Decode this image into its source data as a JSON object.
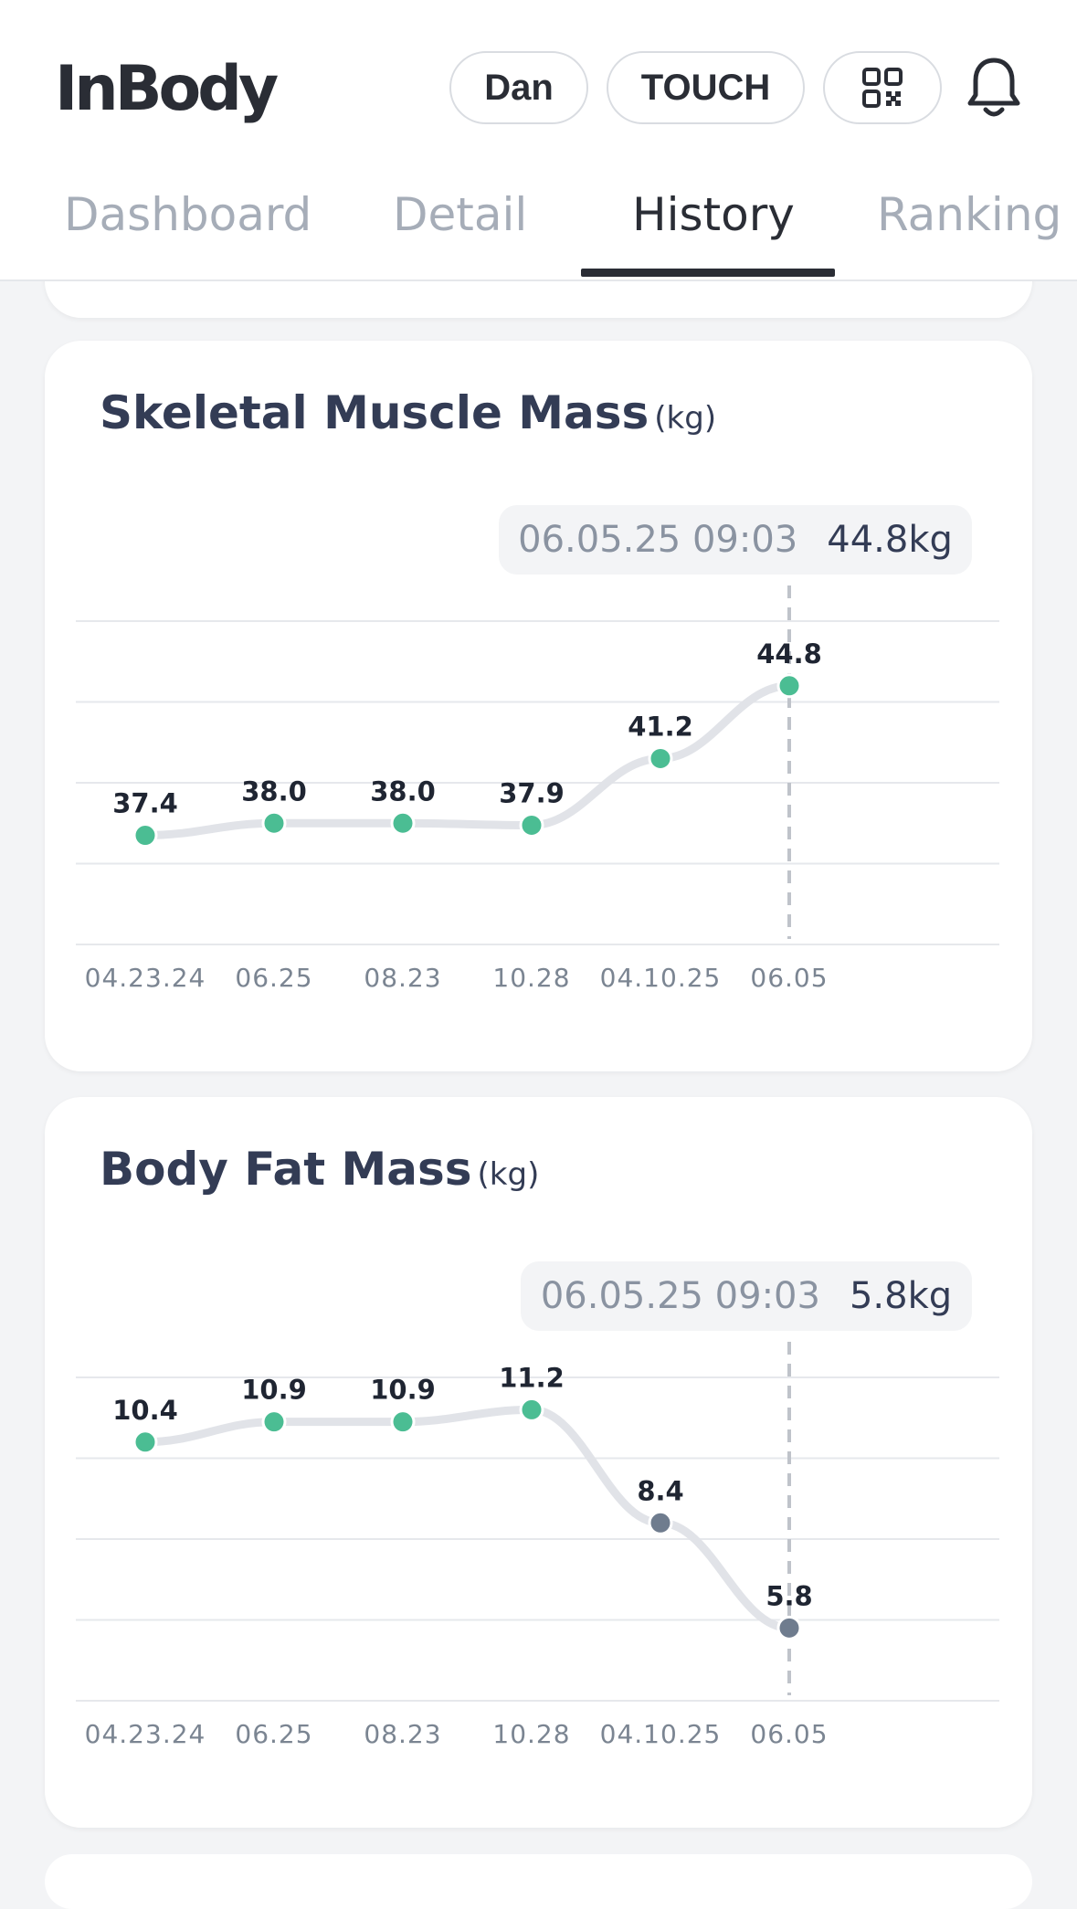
{
  "header": {
    "logo": "InBody",
    "user_label": "Dan",
    "touch_label": "TOUCH",
    "qr_icon": "qr-code-icon",
    "bell_icon": "bell-icon"
  },
  "tabs": [
    {
      "label": "Dashboard",
      "active": false
    },
    {
      "label": "Detail",
      "active": false
    },
    {
      "label": "History",
      "active": true
    },
    {
      "label": "Ranking",
      "active": false
    }
  ],
  "colors": {
    "accent": "#4bbd93",
    "decreased": "#6f7c8e",
    "line": "#e1e3e8",
    "text_dark": "#333c55"
  },
  "cards": [
    {
      "title": "Skeletal Muscle Mass",
      "unit": "(kg)",
      "tooltip_date": "06.05.25 09:03",
      "tooltip_value": "44.8kg"
    },
    {
      "title": "Body Fat Mass",
      "unit": "(kg)",
      "tooltip_date": "06.05.25 09:03",
      "tooltip_value": "5.8kg"
    }
  ],
  "chart_data": [
    {
      "type": "line",
      "title": "Skeletal Muscle Mass",
      "ylabel": "(kg)",
      "categories": [
        "04.23.24",
        "06.25",
        "08.23",
        "10.28",
        "04.10.25",
        "06.05"
      ],
      "values": [
        37.4,
        38.0,
        38.0,
        37.9,
        41.2,
        44.8
      ],
      "value_labels": [
        "37.4",
        "38.0",
        "38.0",
        "37.9",
        "41.2",
        "44.8"
      ],
      "point_colors": [
        "#4bbd93",
        "#4bbd93",
        "#4bbd93",
        "#4bbd93",
        "#4bbd93",
        "#4bbd93"
      ],
      "ylim": [
        32,
        48
      ],
      "grid": true,
      "selected_index": 5
    },
    {
      "type": "line",
      "title": "Body Fat Mass",
      "ylabel": "(kg)",
      "categories": [
        "04.23.24",
        "06.25",
        "08.23",
        "10.28",
        "04.10.25",
        "06.05"
      ],
      "values": [
        10.4,
        10.9,
        10.9,
        11.2,
        8.4,
        5.8
      ],
      "value_labels": [
        "10.4",
        "10.9",
        "10.9",
        "11.2",
        "8.4",
        "5.8"
      ],
      "point_colors": [
        "#4bbd93",
        "#4bbd93",
        "#4bbd93",
        "#4bbd93",
        "#6f7c8e",
        "#6f7c8e"
      ],
      "ylim": [
        4,
        12
      ],
      "grid": true,
      "selected_index": 5
    }
  ]
}
